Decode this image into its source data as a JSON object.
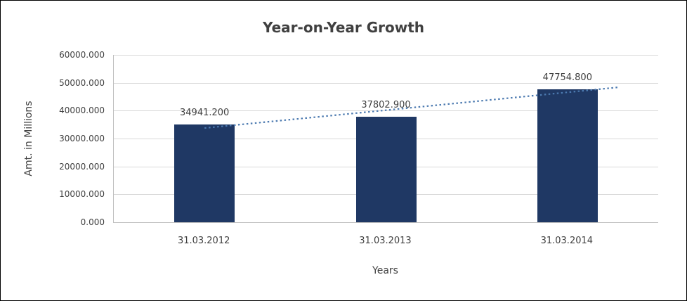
{
  "chart_data": {
    "type": "bar",
    "title": "Year-on-Year Growth",
    "xlabel": "Years",
    "ylabel": "Amt. in Millions",
    "categories": [
      "31.03.2012",
      "31.03.2013",
      "31.03.2014"
    ],
    "values": [
      34941.2,
      37802.9,
      47754.8
    ],
    "value_labels": [
      "34941.200",
      "37802.900",
      "47754.800"
    ],
    "ylim": [
      0,
      60000
    ],
    "y_tick_step": 10000,
    "y_tick_labels": [
      "0.000",
      "10000.000",
      "20000.000",
      "30000.000",
      "40000.000",
      "50000.000",
      "60000.000"
    ],
    "grid": "horizontal",
    "legend": "none",
    "trendline": {
      "type": "linear",
      "style": "dotted"
    },
    "colors": {
      "bar": "#1F3864",
      "trendline": "#4C7AB0",
      "text": "#404040",
      "gridline": "#D9D9D9",
      "axis_line": "#BFBFBF"
    }
  }
}
